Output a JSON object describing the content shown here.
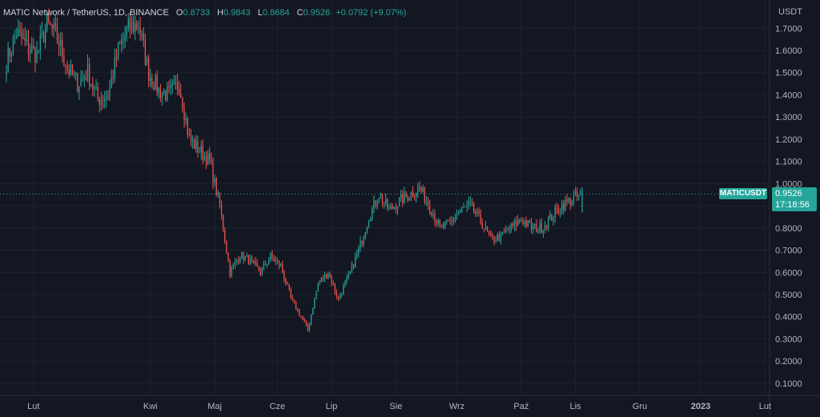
{
  "legend": {
    "symbol_title": "MATIC Network / TetherUS, 1D, BINANCE",
    "o_label": "O",
    "o_value": "0.8733",
    "h_label": "H",
    "h_value": "0.9843",
    "l_label": "L",
    "l_value": "0.8684",
    "c_label": "C",
    "c_value": "0.9526",
    "change": "+0.0792 (+9.07%)"
  },
  "price_axis": {
    "currency": "USDT"
  },
  "last_price": {
    "ticker": "MATICUSDT",
    "price": "0.9526",
    "countdown": "17:18:56"
  },
  "colors": {
    "background": "#131722",
    "up": "#26a69a",
    "down": "#ef5350",
    "grid": "#1e2230",
    "text": "#b2b5be"
  },
  "chart_data": {
    "type": "candlestick",
    "title": "MATIC Network / TetherUS, 1D, BINANCE",
    "ylabel": "USDT",
    "ylim": [
      0.06,
      1.755
    ],
    "y_ticks": [
      "0.1000",
      "0.2000",
      "0.3000",
      "0.4000",
      "0.5000",
      "0.6000",
      "0.7000",
      "0.8000",
      "0.9000",
      "1.0000",
      "1.1000",
      "1.2000",
      "1.3000",
      "1.4000",
      "1.5000",
      "1.6000",
      "1.7000"
    ],
    "x_ticks": [
      "Lut",
      "Kwi",
      "Maj",
      "Cze",
      "Lip",
      "Sie",
      "Wrz",
      "Paź",
      "Lis",
      "Gru",
      "2023",
      "Lut"
    ],
    "grid": true,
    "last_close": 0.9526,
    "series": [
      {
        "name": "MATICUSDT",
        "anchors": [
          [
            0,
            1.55
          ],
          [
            6,
            1.68
          ],
          [
            12,
            1.62
          ],
          [
            18,
            1.58
          ],
          [
            24,
            1.72
          ],
          [
            30,
            1.66
          ],
          [
            36,
            1.52
          ],
          [
            42,
            1.45
          ],
          [
            48,
            1.5
          ],
          [
            54,
            1.38
          ],
          [
            60,
            1.4
          ],
          [
            66,
            1.6
          ],
          [
            72,
            1.7
          ],
          [
            78,
            1.72
          ],
          [
            84,
            1.5
          ],
          [
            90,
            1.42
          ],
          [
            96,
            1.4
          ],
          [
            102,
            1.45
          ],
          [
            108,
            1.2
          ],
          [
            114,
            1.15
          ],
          [
            120,
            1.1
          ],
          [
            126,
            0.9
          ],
          [
            132,
            0.6
          ],
          [
            138,
            0.68
          ],
          [
            144,
            0.65
          ],
          [
            150,
            0.6
          ],
          [
            156,
            0.67
          ],
          [
            162,
            0.63
          ],
          [
            168,
            0.48
          ],
          [
            174,
            0.4
          ],
          [
            178,
            0.34
          ],
          [
            184,
            0.55
          ],
          [
            190,
            0.6
          ],
          [
            196,
            0.48
          ],
          [
            202,
            0.58
          ],
          [
            208,
            0.7
          ],
          [
            214,
            0.85
          ],
          [
            220,
            0.95
          ],
          [
            226,
            0.88
          ],
          [
            232,
            0.92
          ],
          [
            238,
            0.95
          ],
          [
            244,
            0.98
          ],
          [
            250,
            0.9
          ],
          [
            256,
            0.8
          ],
          [
            262,
            0.82
          ],
          [
            268,
            0.88
          ],
          [
            274,
            0.9
          ],
          [
            280,
            0.83
          ],
          [
            286,
            0.75
          ],
          [
            292,
            0.76
          ],
          [
            298,
            0.8
          ],
          [
            304,
            0.84
          ],
          [
            310,
            0.8
          ],
          [
            316,
            0.8
          ],
          [
            322,
            0.85
          ],
          [
            328,
            0.9
          ],
          [
            334,
            0.93
          ],
          [
            340,
            0.9526
          ]
        ],
        "last_candle": {
          "open": 0.8733,
          "high": 0.9843,
          "low": 0.8684,
          "close": 0.9526
        }
      }
    ]
  }
}
